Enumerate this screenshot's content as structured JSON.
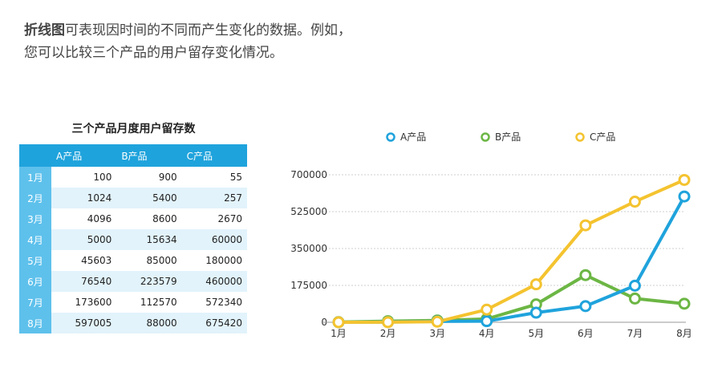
{
  "intro": {
    "lead": "折线图",
    "line1_rest": "可表现因时间的不同而产生变化的数据。例如，",
    "line2": "您可以比较三个产品的用户留存变化情况。"
  },
  "table": {
    "title": "三个产品月度用户留存数",
    "headers": [
      "A产品",
      "B产品",
      "C产品"
    ],
    "rows": [
      {
        "month": "1月",
        "values": [
          "100",
          "900",
          "55"
        ]
      },
      {
        "month": "2月",
        "values": [
          "1024",
          "5400",
          "257"
        ]
      },
      {
        "month": "3月",
        "values": [
          "4096",
          "8600",
          "2670"
        ]
      },
      {
        "month": "4月",
        "values": [
          "5000",
          "15634",
          "60000"
        ]
      },
      {
        "month": "5月",
        "values": [
          "45603",
          "85000",
          "180000"
        ]
      },
      {
        "month": "6月",
        "values": [
          "76540",
          "223579",
          "460000"
        ]
      },
      {
        "month": "7月",
        "values": [
          "173600",
          "112570",
          "572340"
        ]
      },
      {
        "month": "8月",
        "values": [
          "597005",
          "88000",
          "675420"
        ]
      }
    ]
  },
  "chart_data": {
    "type": "line",
    "categories": [
      "1月",
      "2月",
      "3月",
      "4月",
      "5月",
      "6月",
      "7月",
      "8月"
    ],
    "ylim": [
      0,
      700000
    ],
    "yticks": [
      0,
      175000,
      350000,
      525000,
      700000
    ],
    "grid": true,
    "legend_position": "top",
    "series": [
      {
        "name": "A产品",
        "color": "#1fa3dc",
        "values": [
          100,
          1024,
          4096,
          5000,
          45603,
          76540,
          173600,
          597005
        ]
      },
      {
        "name": "B产品",
        "color": "#6cb644",
        "values": [
          900,
          5400,
          8600,
          15634,
          85000,
          223579,
          112570,
          88000
        ]
      },
      {
        "name": "C产品",
        "color": "#f4c32f",
        "values": [
          55,
          257,
          2670,
          60000,
          180000,
          460000,
          572340,
          675420
        ]
      }
    ]
  }
}
